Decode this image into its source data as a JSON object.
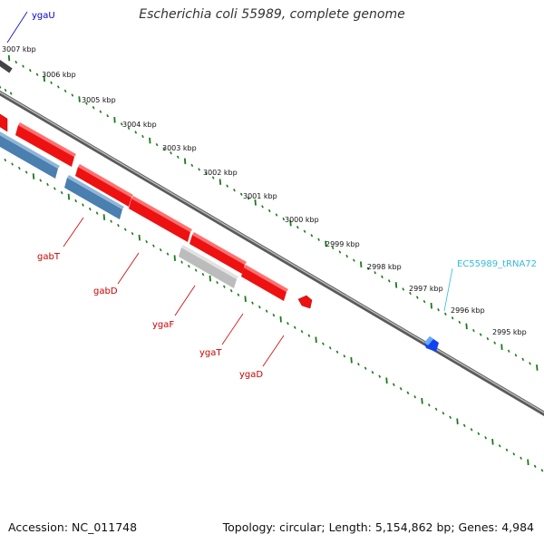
{
  "header": {
    "title": "Escherichia coli 55989, complete genome"
  },
  "footer": {
    "accession": "Accession: NC_011748",
    "topology": "Topology: circular; Length: 5,154,862 bp; Genes: 4,984"
  },
  "ruler": {
    "unit": "kbp",
    "labels": [
      "3007 kbp",
      "3006 kbp",
      "3005 kbp",
      "3004 kbp",
      "3003 kbp",
      "3002 kbp",
      "3001 kbp",
      "3000 kbp",
      "2999 kbp",
      "2998 kbp",
      "2997 kbp",
      "2996 kbp",
      "2995 kbp"
    ]
  },
  "genes": [
    {
      "name": "ygaU",
      "color": "#0000cc",
      "labeled": true
    },
    {
      "name": "gabT",
      "color": "#cc0000",
      "labeled": true
    },
    {
      "name": "gabD",
      "color": "#cc0000",
      "labeled": true
    },
    {
      "name": "ygaF",
      "color": "#cc0000",
      "labeled": true
    },
    {
      "name": "ygaT",
      "color": "#cc0000",
      "labeled": true
    },
    {
      "name": "ygaD",
      "color": "#cc0000",
      "labeled": true
    },
    {
      "name": "EC55989_tRNA72",
      "color": "#33bbdd",
      "labeled": true
    }
  ],
  "colors": {
    "forward_gene": "#ee1111",
    "reverse_gene": "#4a7fb0",
    "pseudo_gene": "#bbbbbb",
    "trna": "#1144ee",
    "backbone": "#808080",
    "dots": "#1a7a1a"
  }
}
